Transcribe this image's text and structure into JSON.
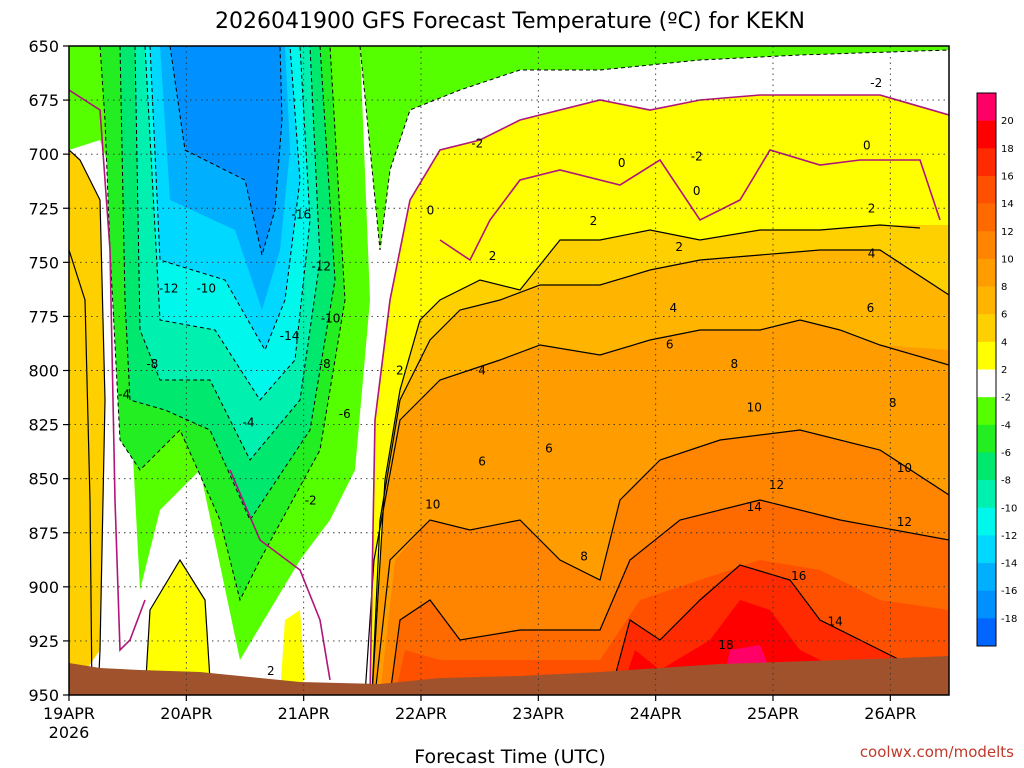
{
  "chart_data": {
    "type": "heatmap",
    "title": "2026041900 GFS Forecast Temperature (ºC) for KEKN",
    "xlabel": "Forecast Time (UTC)",
    "ylabel": "",
    "credit": "coolwx.com/modelts",
    "x_ticks": [
      "19APR",
      "20APR",
      "21APR",
      "22APR",
      "23APR",
      "24APR",
      "25APR",
      "26APR"
    ],
    "x_first_year": "2026",
    "xlim_days": [
      0,
      7.5
    ],
    "y_ticks": [
      650,
      675,
      700,
      725,
      750,
      775,
      800,
      825,
      850,
      875,
      900,
      925,
      950
    ],
    "ylim_hpa": [
      950,
      650
    ],
    "units": "ºC",
    "grid": true,
    "colorbar": {
      "labels": [
        "20",
        "18",
        "16",
        "14",
        "12",
        "10",
        "8",
        "6",
        "4",
        "2",
        "-2",
        "-4",
        "-6",
        "-8",
        "-10",
        "-12",
        "-14",
        "-16",
        "-18"
      ],
      "colors": [
        "#ff0066",
        "#ff0000",
        "#ff2a00",
        "#ff5000",
        "#ff6a00",
        "#ff8400",
        "#ff9d00",
        "#ffb400",
        "#ffd000",
        "#ffff00",
        "#ffffff",
        "#55ff00",
        "#22ee22",
        "#00e86e",
        "#00f0b0",
        "#00f8ec",
        "#00d8ff",
        "#00b0ff",
        "#0090ff",
        "#0066ff"
      ],
      "position": "right"
    },
    "contour_labels": [
      {
        "t": 0.47,
        "p": 811,
        "v": "-4"
      },
      {
        "t": 0.71,
        "p": 797,
        "v": "-8"
      },
      {
        "t": 0.85,
        "p": 762,
        "v": "-12"
      },
      {
        "t": 1.17,
        "p": 762,
        "v": "-10"
      },
      {
        "t": 1.53,
        "p": 824,
        "v": "-4"
      },
      {
        "t": 1.98,
        "p": 728,
        "v": "-16"
      },
      {
        "t": 1.88,
        "p": 784,
        "v": "-14"
      },
      {
        "t": 2.15,
        "p": 752,
        "v": "-12"
      },
      {
        "t": 2.23,
        "p": 776,
        "v": "-10"
      },
      {
        "t": 2.18,
        "p": 797,
        "v": "-8"
      },
      {
        "t": 2.35,
        "p": 820,
        "v": "-6"
      },
      {
        "t": 2.06,
        "p": 860,
        "v": "-2"
      },
      {
        "t": 1.72,
        "p": 939,
        "v": "2"
      },
      {
        "t": 3.08,
        "p": 726,
        "v": "0"
      },
      {
        "t": 3.48,
        "p": 695,
        "v": "-2"
      },
      {
        "t": 3.61,
        "p": 747,
        "v": "2"
      },
      {
        "t": 2.82,
        "p": 800,
        "v": "2"
      },
      {
        "t": 3.52,
        "p": 800,
        "v": "4"
      },
      {
        "t": 3.52,
        "p": 842,
        "v": "6"
      },
      {
        "t": 3.1,
        "p": 862,
        "v": "10"
      },
      {
        "t": 4.47,
        "p": 731,
        "v": "2"
      },
      {
        "t": 4.09,
        "p": 836,
        "v": "6"
      },
      {
        "t": 4.39,
        "p": 886,
        "v": "8"
      },
      {
        "t": 4.71,
        "p": 704,
        "v": "0"
      },
      {
        "t": 5.35,
        "p": 701,
        "v": "-2"
      },
      {
        "t": 5.35,
        "p": 717,
        "v": "0"
      },
      {
        "t": 5.2,
        "p": 743,
        "v": "2"
      },
      {
        "t": 5.15,
        "p": 771,
        "v": "4"
      },
      {
        "t": 5.12,
        "p": 788,
        "v": "6"
      },
      {
        "t": 5.67,
        "p": 797,
        "v": "8"
      },
      {
        "t": 5.84,
        "p": 817,
        "v": "10"
      },
      {
        "t": 5.84,
        "p": 863,
        "v": "14"
      },
      {
        "t": 6.03,
        "p": 853,
        "v": "12"
      },
      {
        "t": 6.22,
        "p": 895,
        "v": "16"
      },
      {
        "t": 5.6,
        "p": 927,
        "v": "18"
      },
      {
        "t": 6.53,
        "p": 916,
        "v": "14"
      },
      {
        "t": 6.8,
        "p": 696,
        "v": "0"
      },
      {
        "t": 6.88,
        "p": 667,
        "v": "-2"
      },
      {
        "t": 6.84,
        "p": 725,
        "v": "2"
      },
      {
        "t": 6.84,
        "p": 746,
        "v": "4"
      },
      {
        "t": 6.83,
        "p": 771,
        "v": "6"
      },
      {
        "t": 7.02,
        "p": 815,
        "v": "8"
      },
      {
        "t": 7.12,
        "p": 845,
        "v": "10"
      },
      {
        "t": 7.12,
        "p": 870,
        "v": "12"
      }
    ]
  }
}
